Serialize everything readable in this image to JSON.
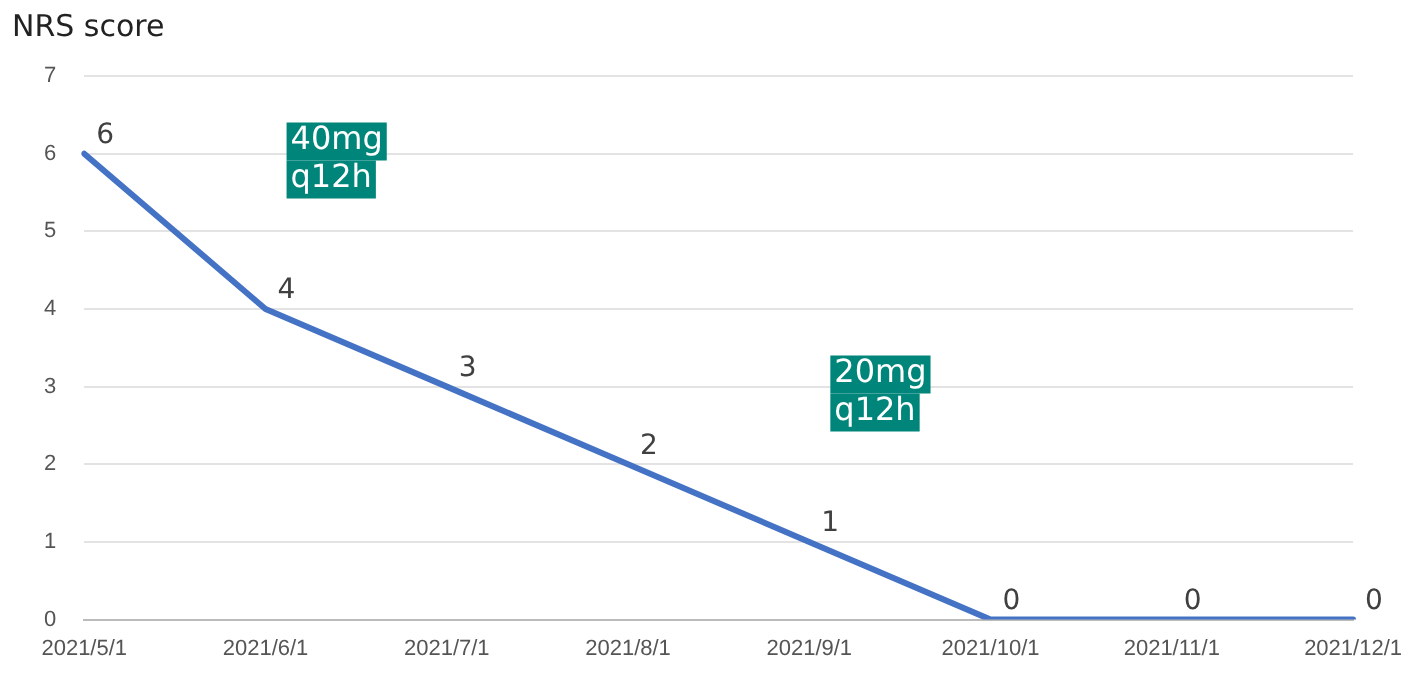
{
  "chart_data": {
    "type": "line",
    "ylabel": "NRS score",
    "categories": [
      "2021/5/1",
      "2021/6/1",
      "2021/7/1",
      "2021/8/1",
      "2021/9/1",
      "2021/10/1",
      "2021/11/1",
      "2021/12/1"
    ],
    "series": [
      {
        "color": "#4472c4",
        "values": [
          6,
          4,
          3,
          2,
          1,
          0,
          0,
          0
        ]
      }
    ],
    "ylim": [
      0,
      7
    ],
    "yticks": [
      0,
      1,
      2,
      3,
      4,
      5,
      6,
      7
    ],
    "grid": "y",
    "data_labels": true,
    "marker": "none",
    "line_style": "solid",
    "annotations": [
      "40mg q12h",
      "20mg q12h"
    ]
  }
}
